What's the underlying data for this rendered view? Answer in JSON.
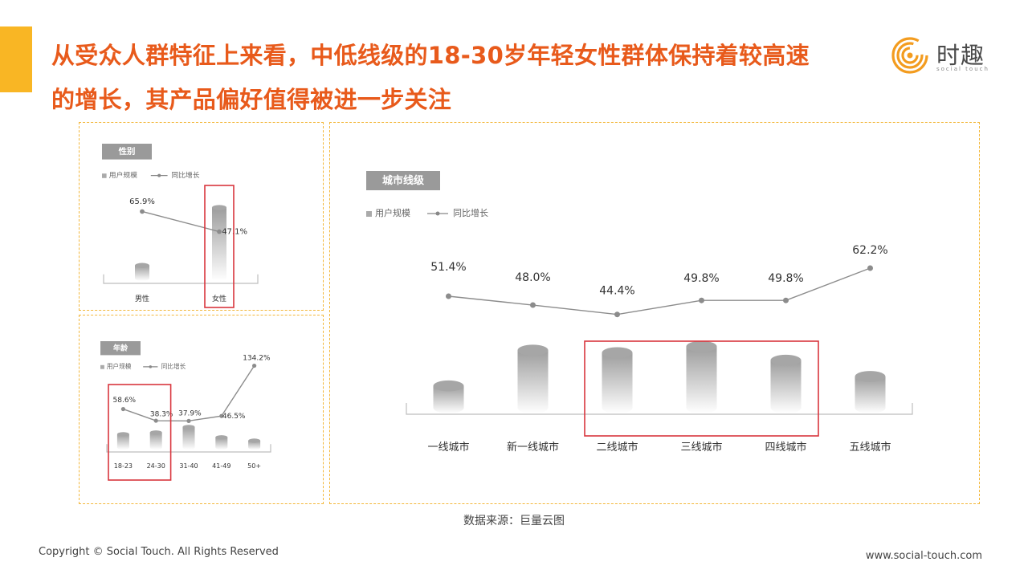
{
  "title": {
    "line1": "从受众人群特征上来看，中低线级的18-30岁年轻女性群体保持着较高速",
    "line2": "的增长，其产品偏好值得被进一步关注"
  },
  "logo": {
    "text": "时趣",
    "sub": "social touch"
  },
  "colors": {
    "title": "#e85a1b",
    "accent": "#f9b624",
    "highlight": "#d9363e",
    "line": "#888888",
    "label_bg": "#9a9a9a"
  },
  "chart_data": [
    {
      "type": "bar",
      "panel_label": "性别",
      "legend": [
        "用户规模",
        "同比增长"
      ],
      "categories": [
        "男性",
        "女性"
      ],
      "series": [
        {
          "name": "用户规模",
          "values": [
            0.18,
            1.0
          ]
        },
        {
          "name": "同比增长",
          "values": [
            65.9,
            47.1
          ],
          "labels": [
            "65.9%",
            "47.1%"
          ]
        }
      ],
      "highlight": [
        "女性"
      ]
    },
    {
      "type": "bar",
      "panel_label": "年龄",
      "legend": [
        "用户规模",
        "同比增长"
      ],
      "categories": [
        "18-23",
        "24-30",
        "31-40",
        "41-49",
        "50+"
      ],
      "series": [
        {
          "name": "用户规模",
          "values": [
            0.55,
            0.62,
            0.85,
            0.42,
            0.28
          ]
        },
        {
          "name": "同比增长",
          "values": [
            58.6,
            38.3,
            37.9,
            46.5,
            134.2
          ],
          "labels": [
            "58.6%",
            "38.3%",
            "37.9%",
            "46.5%",
            "134.2%"
          ]
        }
      ],
      "highlight": [
        "18-23",
        "24-30"
      ]
    },
    {
      "type": "bar",
      "panel_label": "城市线级",
      "legend": [
        "用户规模",
        "同比增长"
      ],
      "categories": [
        "一线城市",
        "新一线城市",
        "二线城市",
        "三线城市",
        "四线城市",
        "五线城市"
      ],
      "series": [
        {
          "name": "用户规模",
          "values": [
            0.35,
            0.92,
            0.88,
            0.98,
            0.76,
            0.5
          ]
        },
        {
          "name": "同比增长",
          "values": [
            51.4,
            48.0,
            44.4,
            49.8,
            49.8,
            62.2
          ],
          "labels": [
            "51.4%",
            "48.0%",
            "44.4%",
            "49.8%",
            "49.8%",
            "62.2%"
          ]
        }
      ],
      "highlight": [
        "二线城市",
        "三线城市",
        "四线城市"
      ]
    }
  ],
  "source": "数据来源：巨量云图",
  "footer": {
    "copyright": "Copyright © Social Touch. All Rights Reserved",
    "website": "www.social-touch.com"
  }
}
